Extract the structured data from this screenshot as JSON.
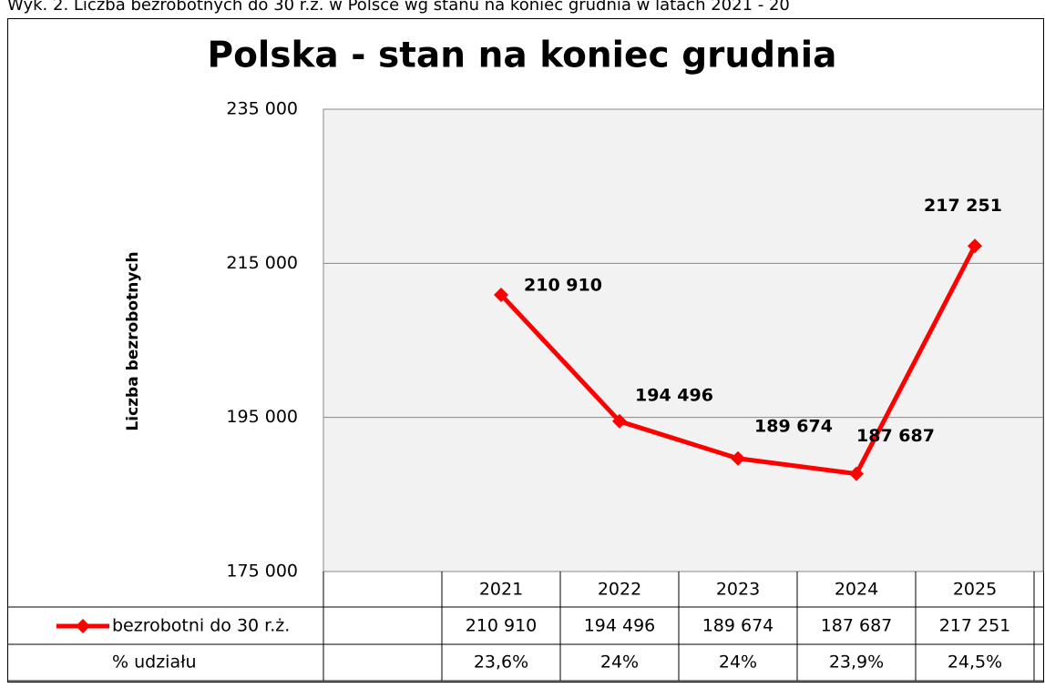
{
  "chart_data": {
    "type": "line",
    "caption": "Wyk. 2. Liczba bezrobotnych do 30 r.ż. w Polsce wg stanu na koniec grudnia w latach 2021 - 20",
    "title": "Polska - stan na koniec grudnia",
    "y_label": "Liczba bezrobotnych",
    "categories": [
      "2021",
      "2022",
      "2023",
      "2024",
      "2025"
    ],
    "series": [
      {
        "name": "bezrobotni do 30 r.ż.",
        "color": "#ff0000",
        "values": [
          210910,
          194496,
          189674,
          187687,
          217251
        ],
        "value_labels": [
          "210 910",
          "194 496",
          "189 674",
          "187 687",
          "217 251"
        ]
      }
    ],
    "share": {
      "name": "% udziału",
      "values": [
        23.6,
        24,
        24,
        23.9,
        24.5
      ],
      "value_labels": [
        "23,6%",
        "24%",
        "24%",
        "23,9%",
        "24,5%"
      ]
    },
    "ylim": [
      175000,
      235000
    ],
    "yticks": [
      {
        "value": 175000,
        "label": "175 000"
      },
      {
        "value": 195000,
        "label": "195 000"
      },
      {
        "value": 215000,
        "label": "215 000"
      },
      {
        "value": 235000,
        "label": "235 000"
      }
    ],
    "grid": true
  }
}
